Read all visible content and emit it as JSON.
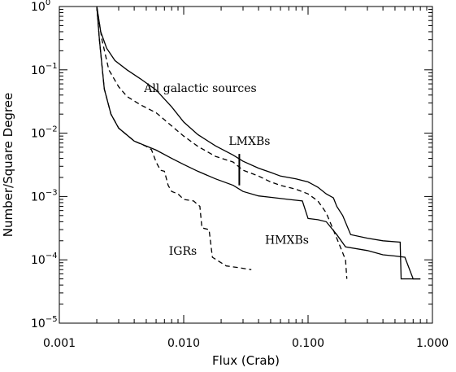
{
  "chart_data": {
    "type": "line",
    "title": "",
    "xlabel": "Flux (Crab)",
    "ylabel": "Number/Square Degree",
    "x_scale": "log",
    "y_scale": "log",
    "xlim": [
      0.001,
      1.0
    ],
    "ylim": [
      1e-05,
      1
    ],
    "grid": false,
    "legend": "none",
    "x_ticks": [
      {
        "value": 0.001,
        "label": "0.001"
      },
      {
        "value": 0.01,
        "label": "0.010"
      },
      {
        "value": 0.1,
        "label": "0.100"
      },
      {
        "value": 1.0,
        "label": "1.000"
      }
    ],
    "y_ticks": [
      {
        "value": 1,
        "base": "10",
        "exp": "0"
      },
      {
        "value": 0.1,
        "base": "10",
        "exp": "−1"
      },
      {
        "value": 0.01,
        "base": "10",
        "exp": "−2"
      },
      {
        "value": 0.001,
        "base": "10",
        "exp": "−3"
      },
      {
        "value": 0.0001,
        "base": "10",
        "exp": "−4"
      },
      {
        "value": 1e-05,
        "base": "10",
        "exp": "−5"
      }
    ],
    "series": [
      {
        "style": "solid",
        "points": [
          [
            0.002,
            1.0
          ],
          [
            0.00215,
            0.4
          ],
          [
            0.0024,
            0.22
          ],
          [
            0.0028,
            0.14
          ],
          [
            0.0035,
            0.1
          ],
          [
            0.0045,
            0.072
          ],
          [
            0.006,
            0.048
          ],
          [
            0.008,
            0.026
          ],
          [
            0.01,
            0.015
          ],
          [
            0.013,
            0.0095
          ],
          [
            0.018,
            0.0063
          ],
          [
            0.025,
            0.0045
          ],
          [
            0.03,
            0.0036
          ],
          [
            0.04,
            0.0028
          ],
          [
            0.05,
            0.0024
          ],
          [
            0.06,
            0.0021
          ],
          [
            0.08,
            0.0019
          ],
          [
            0.1,
            0.0017
          ],
          [
            0.12,
            0.0014
          ],
          [
            0.14,
            0.0011
          ],
          [
            0.16,
            0.00095
          ],
          [
            0.17,
            0.0007
          ],
          [
            0.19,
            0.0005
          ],
          [
            0.22,
            0.00025
          ],
          [
            0.3,
            0.00022
          ],
          [
            0.4,
            0.0002
          ],
          [
            0.55,
            0.00019
          ],
          [
            0.56,
            5e-05
          ],
          [
            0.7,
            5e-05
          ],
          [
            0.8,
            5e-05
          ]
        ]
      },
      {
        "style": "dashed",
        "points": [
          [
            0.002,
            1.0
          ],
          [
            0.0022,
            0.3
          ],
          [
            0.0025,
            0.1
          ],
          [
            0.003,
            0.054
          ],
          [
            0.0035,
            0.038
          ],
          [
            0.0045,
            0.028
          ],
          [
            0.006,
            0.021
          ],
          [
            0.008,
            0.013
          ],
          [
            0.01,
            0.009
          ],
          [
            0.013,
            0.0062
          ],
          [
            0.018,
            0.0043
          ],
          [
            0.025,
            0.0035
          ],
          [
            0.03,
            0.0026
          ],
          [
            0.04,
            0.0021
          ],
          [
            0.05,
            0.0017
          ],
          [
            0.06,
            0.0015
          ],
          [
            0.08,
            0.0013
          ],
          [
            0.1,
            0.0011
          ],
          [
            0.12,
            0.00085
          ],
          [
            0.14,
            0.00055
          ],
          [
            0.17,
            0.00022
          ],
          [
            0.2,
            0.0001
          ],
          [
            0.205,
            5e-05
          ]
        ]
      },
      {
        "style": "solid",
        "points": [
          [
            0.002,
            1.0
          ],
          [
            0.0021,
            0.3
          ],
          [
            0.0023,
            0.05
          ],
          [
            0.0026,
            0.02
          ],
          [
            0.003,
            0.012
          ],
          [
            0.004,
            0.0075
          ],
          [
            0.006,
            0.0054
          ],
          [
            0.008,
            0.004
          ],
          [
            0.01,
            0.0032
          ],
          [
            0.013,
            0.0025
          ],
          [
            0.018,
            0.0019
          ],
          [
            0.025,
            0.0015
          ],
          [
            0.03,
            0.0012
          ],
          [
            0.04,
            0.00102
          ],
          [
            0.05,
            0.00097
          ],
          [
            0.07,
            0.0009
          ],
          [
            0.09,
            0.00085
          ],
          [
            0.1,
            0.00045
          ],
          [
            0.12,
            0.00043
          ],
          [
            0.14,
            0.0004
          ],
          [
            0.17,
            0.00025
          ],
          [
            0.2,
            0.00016
          ],
          [
            0.3,
            0.00014
          ],
          [
            0.4,
            0.00012
          ],
          [
            0.5,
            0.000115
          ],
          [
            0.6,
            0.00011
          ],
          [
            0.7,
            5e-05
          ],
          [
            0.8,
            5e-05
          ]
        ]
      },
      {
        "style": "dashed",
        "points": [
          [
            0.002,
            1.0
          ],
          [
            0.0021,
            0.3
          ],
          [
            0.0023,
            0.05
          ],
          [
            0.0026,
            0.02
          ],
          [
            0.003,
            0.012
          ],
          [
            0.004,
            0.0075
          ],
          [
            0.005,
            0.0062
          ],
          [
            0.0055,
            0.0055
          ],
          [
            0.006,
            0.0035
          ],
          [
            0.0065,
            0.0026
          ],
          [
            0.007,
            0.0025
          ],
          [
            0.0075,
            0.0015
          ],
          [
            0.008,
            0.0012
          ],
          [
            0.009,
            0.0011
          ],
          [
            0.01,
            0.0009
          ],
          [
            0.012,
            0.00085
          ],
          [
            0.0135,
            0.0007
          ],
          [
            0.014,
            0.00032
          ],
          [
            0.016,
            0.0003
          ],
          [
            0.017,
            0.00011
          ],
          [
            0.02,
            9e-05
          ],
          [
            0.022,
            8e-05
          ],
          [
            0.028,
            7.5e-05
          ],
          [
            0.035,
            7e-05
          ]
        ]
      }
    ],
    "annotations": [
      {
        "text": "All galactic sources"
      },
      {
        "text": "LMXBs"
      },
      {
        "text": "HMXBs"
      },
      {
        "text": "IGRs"
      }
    ]
  }
}
